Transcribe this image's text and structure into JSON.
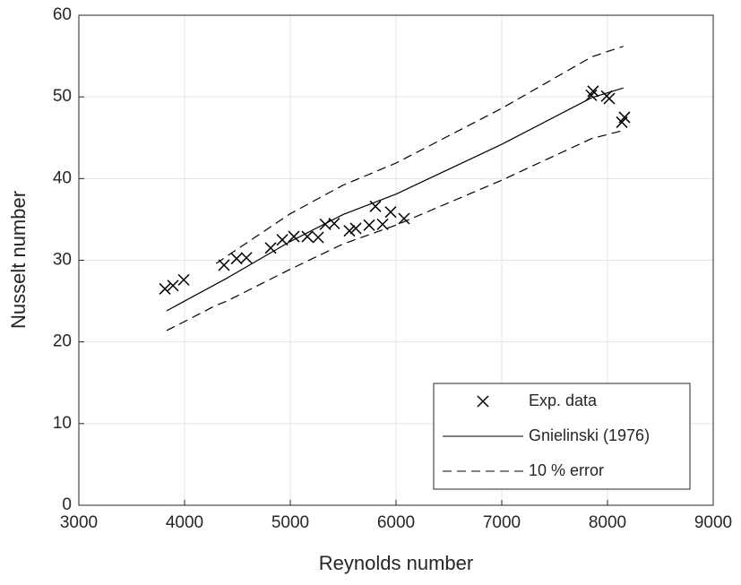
{
  "chart_data": {
    "type": "line",
    "xlabel": "Reynolds number",
    "ylabel": "Nusselt number",
    "xlim": [
      3000,
      9000
    ],
    "xticks": [
      3000,
      4000,
      5000,
      6000,
      7000,
      8000,
      9000
    ],
    "ylim": [
      0,
      60
    ],
    "yticks": [
      0,
      10,
      20,
      30,
      40,
      50,
      60
    ],
    "grid": true,
    "legend": "lower right",
    "series": [
      {
        "name": "Exp. data",
        "type": "scatter",
        "marker": "x",
        "color": "#000000",
        "x": [
          3814,
          3890,
          3992,
          4373,
          4492,
          4585,
          4814,
          4924,
          5034,
          5161,
          5263,
          5331,
          5415,
          5559,
          5619,
          5746,
          5805,
          5873,
          5949,
          6076,
          7847,
          7864,
          7992,
          8017,
          8136,
          8161
        ],
        "values": [
          26.5,
          26.9,
          27.6,
          29.4,
          30.2,
          30.3,
          31.5,
          32.5,
          32.9,
          32.9,
          32.8,
          34.4,
          34.5,
          33.6,
          33.9,
          34.3,
          36.6,
          34.4,
          35.9,
          35.1,
          50.2,
          50.7,
          50.1,
          49.8,
          46.9,
          47.5
        ]
      },
      {
        "name": "Gnielinski (1976)",
        "type": "line",
        "dash": "solid",
        "color": "#000000",
        "x": [
          3830,
          4000,
          4400,
          5000,
          5500,
          6000,
          7000,
          7850,
          8150
        ],
        "values": [
          23.8,
          25.0,
          27.8,
          32.3,
          35.6,
          38.1,
          44.2,
          49.9,
          51.1
        ]
      },
      {
        "name": "10 % error",
        "type": "band-lines",
        "dash": "dashed",
        "color": "#000000",
        "x": [
          3830,
          4000,
          4300,
          4400,
          5000,
          5500,
          6000,
          7000,
          7850,
          8150
        ],
        "upper": [
          null,
          null,
          29.6,
          30.5,
          35.7,
          39.2,
          41.9,
          48.6,
          54.9,
          56.2
        ],
        "lower": [
          21.4,
          22.5,
          24.5,
          25.0,
          28.9,
          32.0,
          34.3,
          39.8,
          44.9,
          45.9
        ]
      }
    ]
  }
}
